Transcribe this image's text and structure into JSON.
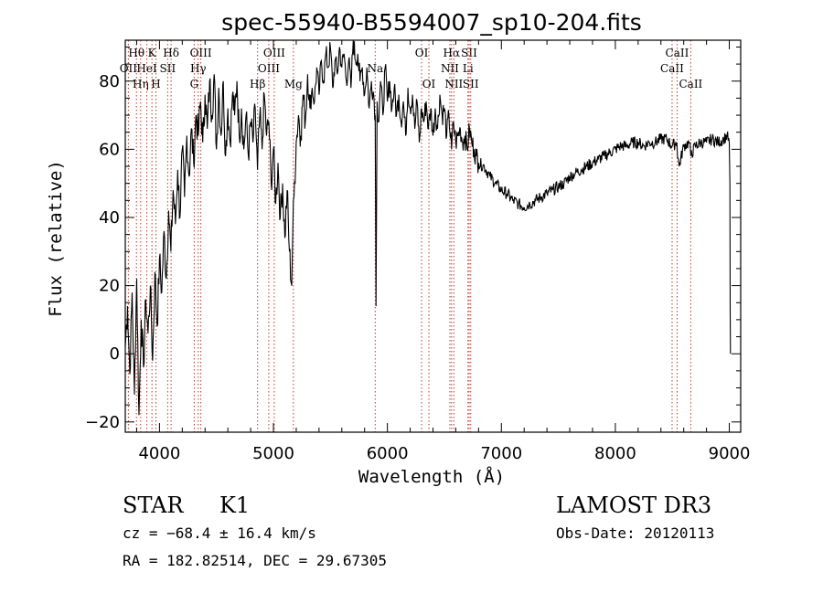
{
  "chart_data": {
    "type": "line",
    "title": "spec-55940-B5594007_sp10-204.fits",
    "xlabel": "Wavelength (Å)",
    "ylabel": "Flux (relative)",
    "xlim": [
      3700,
      9100
    ],
    "ylim": [
      -23,
      92
    ],
    "xticks": [
      4000,
      5000,
      6000,
      7000,
      8000,
      9000
    ],
    "yticks": [
      -20,
      0,
      20,
      40,
      60,
      80
    ],
    "series": [
      {
        "name": "flux",
        "x": [
          3700,
          3720,
          3740,
          3760,
          3780,
          3800,
          3820,
          3840,
          3860,
          3880,
          3900,
          3920,
          3940,
          3960,
          3980,
          4000,
          4020,
          4040,
          4060,
          4080,
          4100,
          4120,
          4140,
          4160,
          4180,
          4200,
          4220,
          4240,
          4260,
          4280,
          4300,
          4320,
          4340,
          4360,
          4380,
          4400,
          4420,
          4440,
          4460,
          4480,
          4500,
          4520,
          4540,
          4560,
          4580,
          4600,
          4620,
          4640,
          4660,
          4680,
          4700,
          4720,
          4740,
          4760,
          4780,
          4800,
          4820,
          4840,
          4860,
          4880,
          4900,
          4920,
          4940,
          4960,
          4980,
          5000,
          5020,
          5040,
          5060,
          5080,
          5100,
          5120,
          5140,
          5160,
          5170,
          5180,
          5200,
          5220,
          5240,
          5260,
          5280,
          5300,
          5320,
          5340,
          5360,
          5380,
          5400,
          5420,
          5440,
          5460,
          5480,
          5500,
          5520,
          5540,
          5560,
          5580,
          5600,
          5620,
          5640,
          5660,
          5680,
          5700,
          5720,
          5740,
          5760,
          5780,
          5800,
          5820,
          5840,
          5860,
          5880,
          5893,
          5900,
          5910,
          5920,
          5940,
          5960,
          5980,
          6000,
          6020,
          6040,
          6060,
          6080,
          6100,
          6120,
          6140,
          6160,
          6180,
          6200,
          6220,
          6240,
          6260,
          6280,
          6300,
          6320,
          6340,
          6360,
          6380,
          6400,
          6420,
          6440,
          6460,
          6480,
          6500,
          6520,
          6540,
          6563,
          6580,
          6600,
          6620,
          6640,
          6660,
          6680,
          6700,
          6720,
          6740,
          6760,
          6780,
          6800,
          6850,
          6900,
          6950,
          7000,
          7050,
          7100,
          7150,
          7200,
          7250,
          7300,
          7350,
          7400,
          7450,
          7500,
          7550,
          7600,
          7650,
          7700,
          7750,
          7800,
          7850,
          7900,
          7950,
          8000,
          8050,
          8100,
          8150,
          8200,
          8250,
          8300,
          8350,
          8400,
          8450,
          8498,
          8540,
          8542,
          8560,
          8600,
          8650,
          8662,
          8700,
          8750,
          8800,
          8850,
          8900,
          8950,
          8980,
          9000,
          9005,
          9008,
          9010
        ],
        "y": [
          2,
          14,
          -6,
          18,
          -12,
          22,
          -18,
          10,
          -4,
          16,
          6,
          20,
          -2,
          24,
          8,
          28,
          18,
          36,
          22,
          42,
          30,
          48,
          38,
          54,
          40,
          60,
          46,
          64,
          52,
          66,
          56,
          70,
          64,
          74,
          62,
          76,
          66,
          80,
          70,
          82,
          60,
          78,
          64,
          80,
          58,
          72,
          62,
          76,
          70,
          80,
          64,
          72,
          60,
          70,
          58,
          68,
          62,
          72,
          54,
          70,
          60,
          76,
          64,
          68,
          50,
          60,
          44,
          56,
          40,
          50,
          34,
          48,
          30,
          20,
          36,
          46,
          62,
          70,
          64,
          76,
          68,
          82,
          72,
          78,
          74,
          84,
          76,
          86,
          80,
          88,
          84,
          90,
          78,
          86,
          82,
          90,
          84,
          88,
          80,
          86,
          78,
          92,
          86,
          88,
          80,
          84,
          76,
          84,
          72,
          80,
          76,
          70,
          14,
          74,
          68,
          80,
          70,
          84,
          74,
          80,
          72,
          78,
          70,
          76,
          68,
          74,
          64,
          78,
          72,
          76,
          66,
          74,
          62,
          72,
          68,
          74,
          66,
          72,
          64,
          72,
          66,
          76,
          70,
          72,
          64,
          70,
          60,
          68,
          62,
          64,
          66,
          62,
          64,
          60,
          66,
          62,
          60,
          58,
          56,
          55,
          52,
          50,
          48,
          47,
          45,
          44,
          43,
          44,
          45,
          46,
          47,
          48,
          49,
          50,
          52,
          53,
          54,
          55,
          56,
          57,
          58,
          59,
          60,
          61,
          61,
          62,
          62,
          61,
          62,
          62,
          63,
          63,
          61,
          62,
          60,
          55,
          61,
          62,
          58,
          61,
          62,
          62,
          63,
          62,
          63,
          64,
          62,
          50,
          12,
          0
        ]
      }
    ],
    "line_markers": [
      {
        "name": "Hθ",
        "wl": 3798,
        "row": 0
      },
      {
        "name": "OII",
        "wl": 3727,
        "row": 1
      },
      {
        "name": "Hη",
        "wl": 3835,
        "row": 2
      },
      {
        "name": "HeI",
        "wl": 3889,
        "row": 1
      },
      {
        "name": "K",
        "wl": 3934,
        "row": 0
      },
      {
        "name": "H",
        "wl": 3969,
        "row": 2
      },
      {
        "name": "SII",
        "wl": 4072,
        "row": 1
      },
      {
        "name": "Hδ",
        "wl": 4102,
        "row": 0
      },
      {
        "name": "OIII",
        "wl": 4363,
        "row": 0
      },
      {
        "name": "Hγ",
        "wl": 4340,
        "row": 1
      },
      {
        "name": "G",
        "wl": 4305,
        "row": 2
      },
      {
        "name": "Hβ",
        "wl": 4861,
        "row": 2
      },
      {
        "name": "OIII",
        "wl": 4959,
        "row": 1
      },
      {
        "name": "OIII",
        "wl": 5007,
        "row": 0
      },
      {
        "name": "Mg",
        "wl": 5175,
        "row": 2
      },
      {
        "name": "Na",
        "wl": 5893,
        "row": 1
      },
      {
        "name": "OI",
        "wl": 6300,
        "row": 0
      },
      {
        "name": "OI",
        "wl": 6364,
        "row": 2
      },
      {
        "name": "NII",
        "wl": 6548,
        "row": 1
      },
      {
        "name": "Hα",
        "wl": 6563,
        "row": 0
      },
      {
        "name": "NII",
        "wl": 6583,
        "row": 2
      },
      {
        "name": "SII",
        "wl": 6717,
        "row": 0
      },
      {
        "name": "SII",
        "wl": 6731,
        "row": 2
      },
      {
        "name": "Li",
        "wl": 6707,
        "row": 1
      },
      {
        "name": "CaII",
        "wl": 8498,
        "row": 1
      },
      {
        "name": "CaII",
        "wl": 8542,
        "row": 0
      },
      {
        "name": "CaII",
        "wl": 8662,
        "row": 2
      }
    ]
  },
  "info": {
    "class": "STAR",
    "subclass": "K1",
    "survey": "LAMOST DR3",
    "cz": "cz = −68.4 ± 16.4 km/s",
    "obs_date": "Obs-Date: 20120113",
    "coords": "RA = 182.82514, DEC =  29.67305"
  },
  "colors": {
    "line_marker": "#c0392b",
    "flux": "#000000"
  }
}
